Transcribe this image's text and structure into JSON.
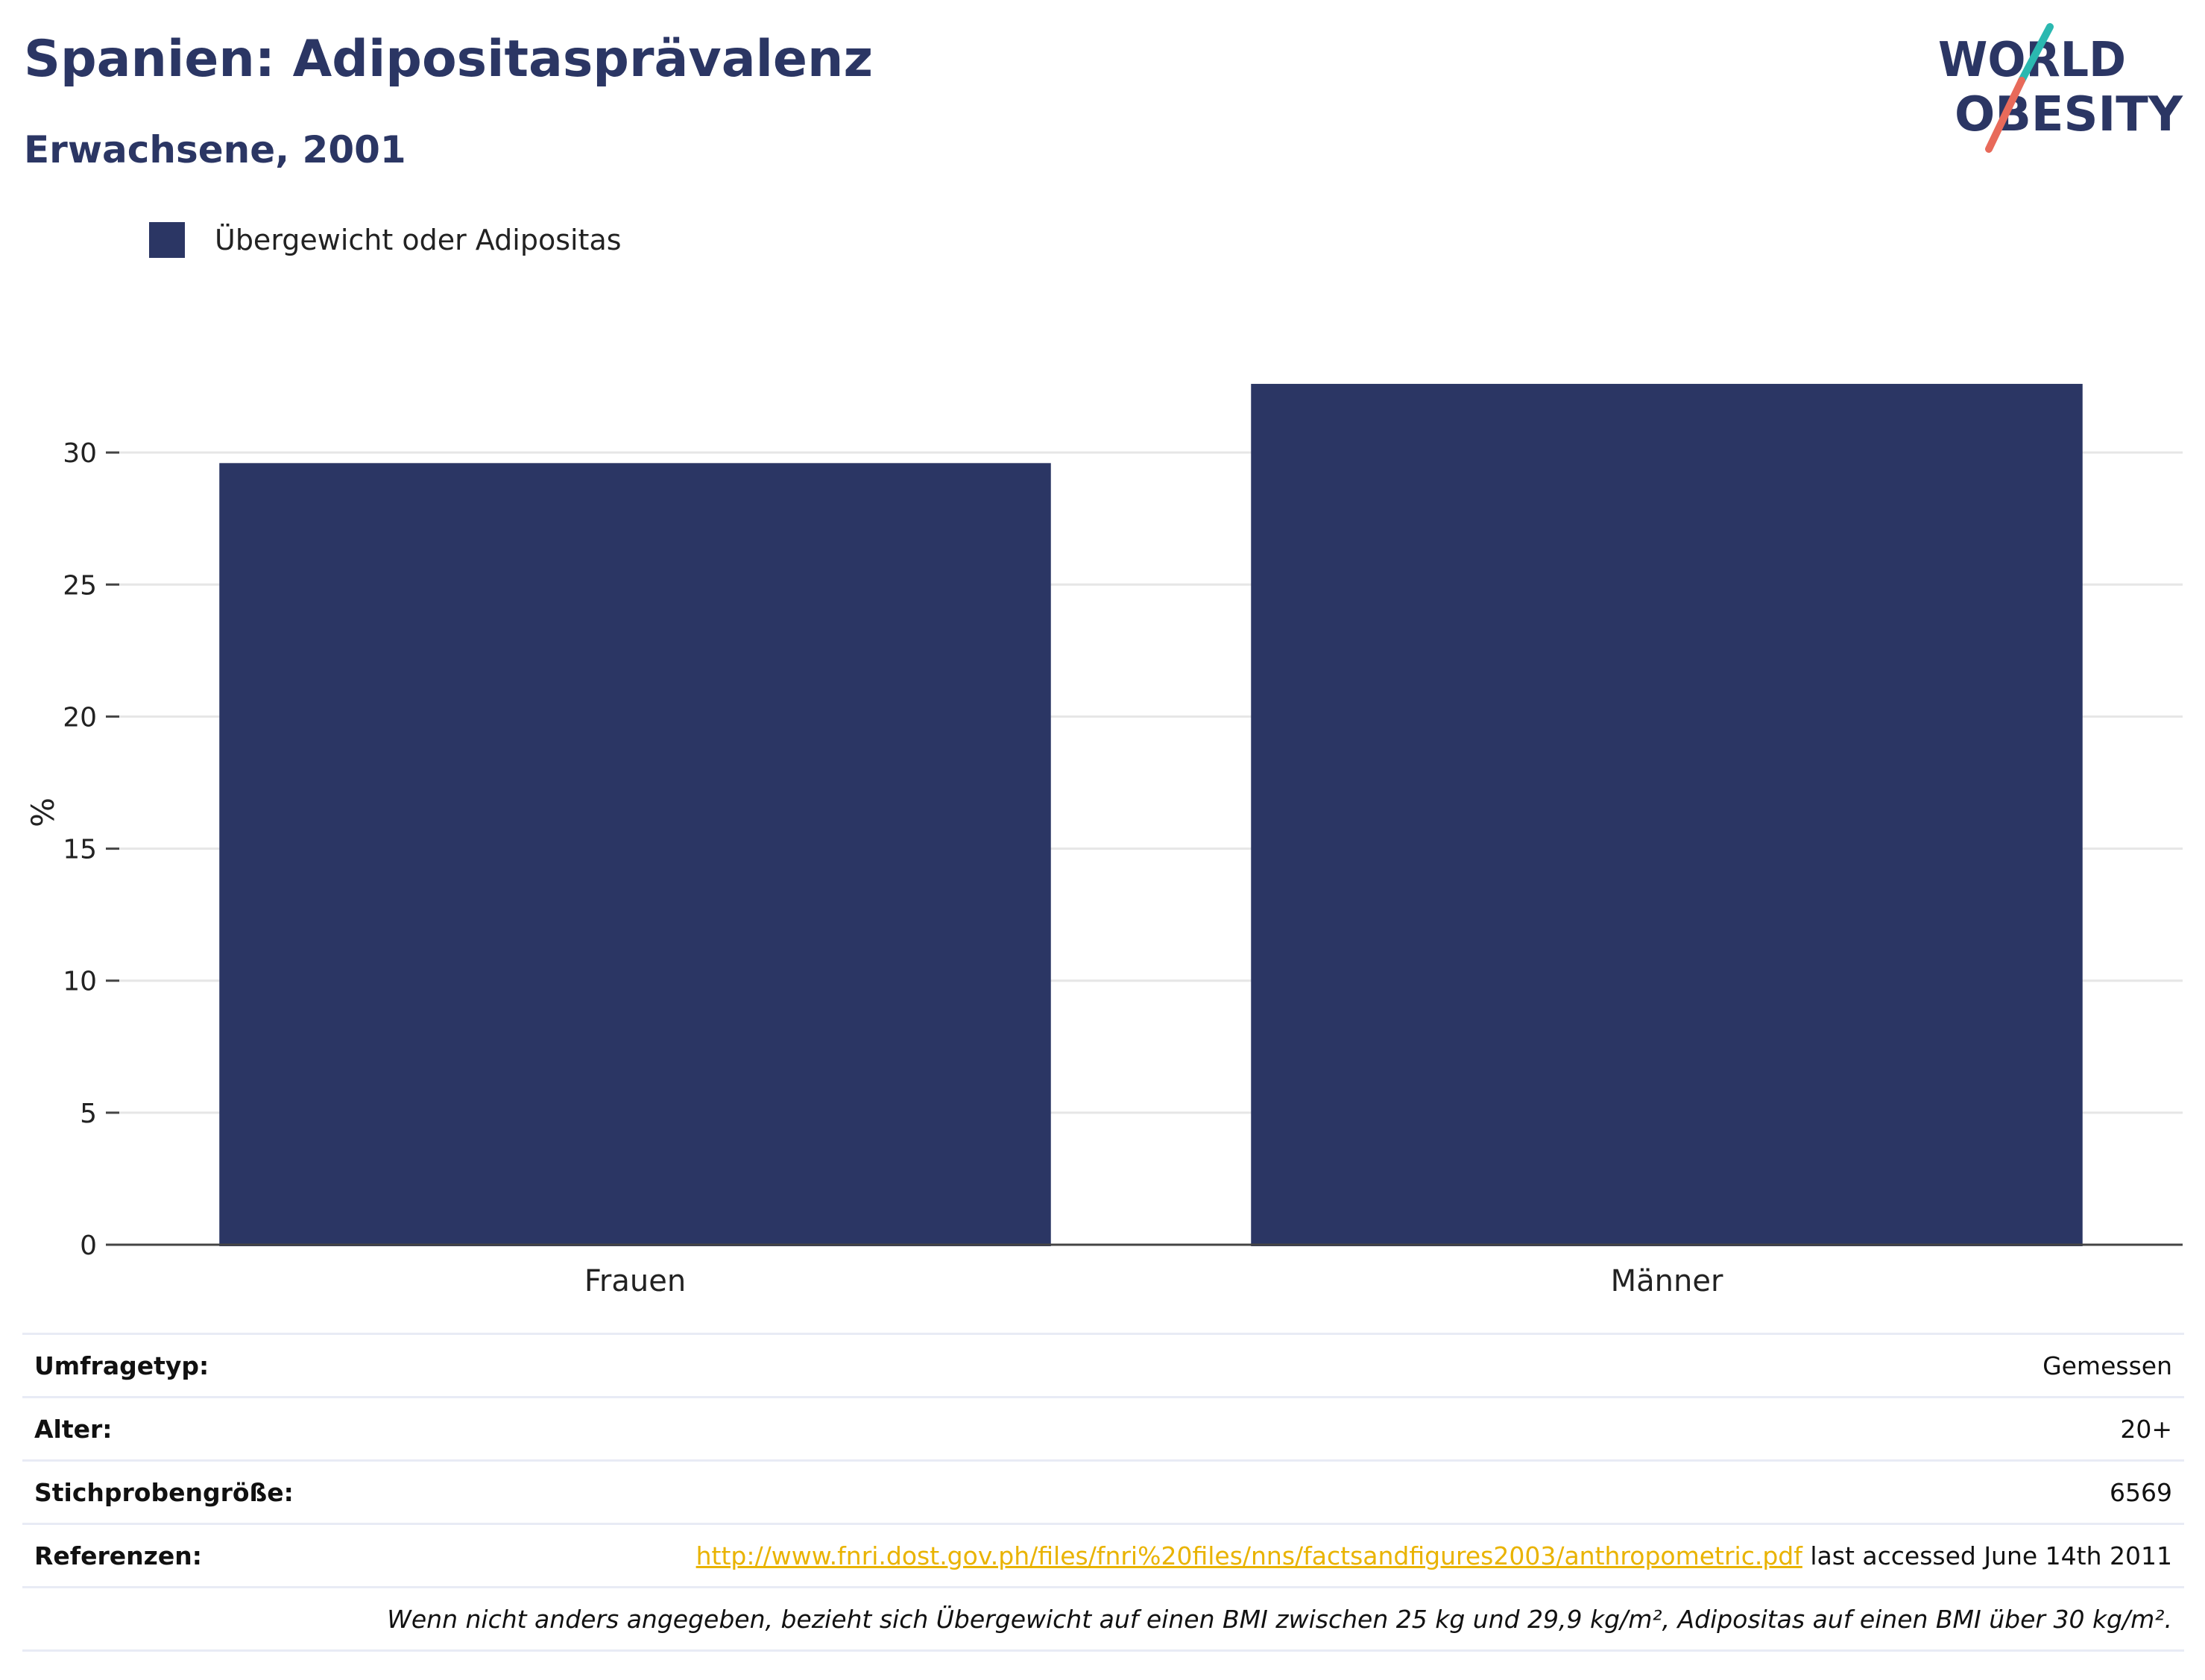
{
  "header": {
    "title": "Spanien: Adipositasprävalenz",
    "subtitle": "Erwachsene, 2001"
  },
  "logo": {
    "line1": "WORLD",
    "line2": "OBESITY"
  },
  "colors": {
    "bar": "#2b3664",
    "title": "#2b3664",
    "link": "#e9b300",
    "grid": "#e6e6e6",
    "logo_teal": "#2bb8b0",
    "logo_coral": "#e86a5a"
  },
  "chart_data": {
    "type": "bar",
    "categories": [
      "Frauen",
      "Männer"
    ],
    "series": [
      {
        "name": "Übergewicht oder Adipositas",
        "values": [
          29.6,
          32.6
        ]
      }
    ],
    "ylabel": "%",
    "xlabel": "",
    "ylim": [
      0,
      35
    ],
    "yticks": [
      0,
      5,
      10,
      15,
      20,
      25,
      30
    ],
    "grid": true,
    "legend_position": "top-left"
  },
  "info": {
    "survey_type_label": "Umfragetyp:",
    "survey_type_value": "Gemessen",
    "age_label": "Alter:",
    "age_value": "20+",
    "sample_label": "Stichprobengröße:",
    "sample_value": "6569",
    "ref_label": "Referenzen:",
    "ref_link": "http://www.fnri.dost.gov.ph/files/fnri%20files/nns/factsandfigures2003/anthropometric.pdf",
    "ref_suffix": " last accessed June 14th 2011",
    "note": "Wenn nicht anders angegeben, bezieht sich Übergewicht auf einen BMI zwischen 25 kg und 29,9 kg/m², Adipositas auf einen BMI über 30 kg/m²."
  }
}
